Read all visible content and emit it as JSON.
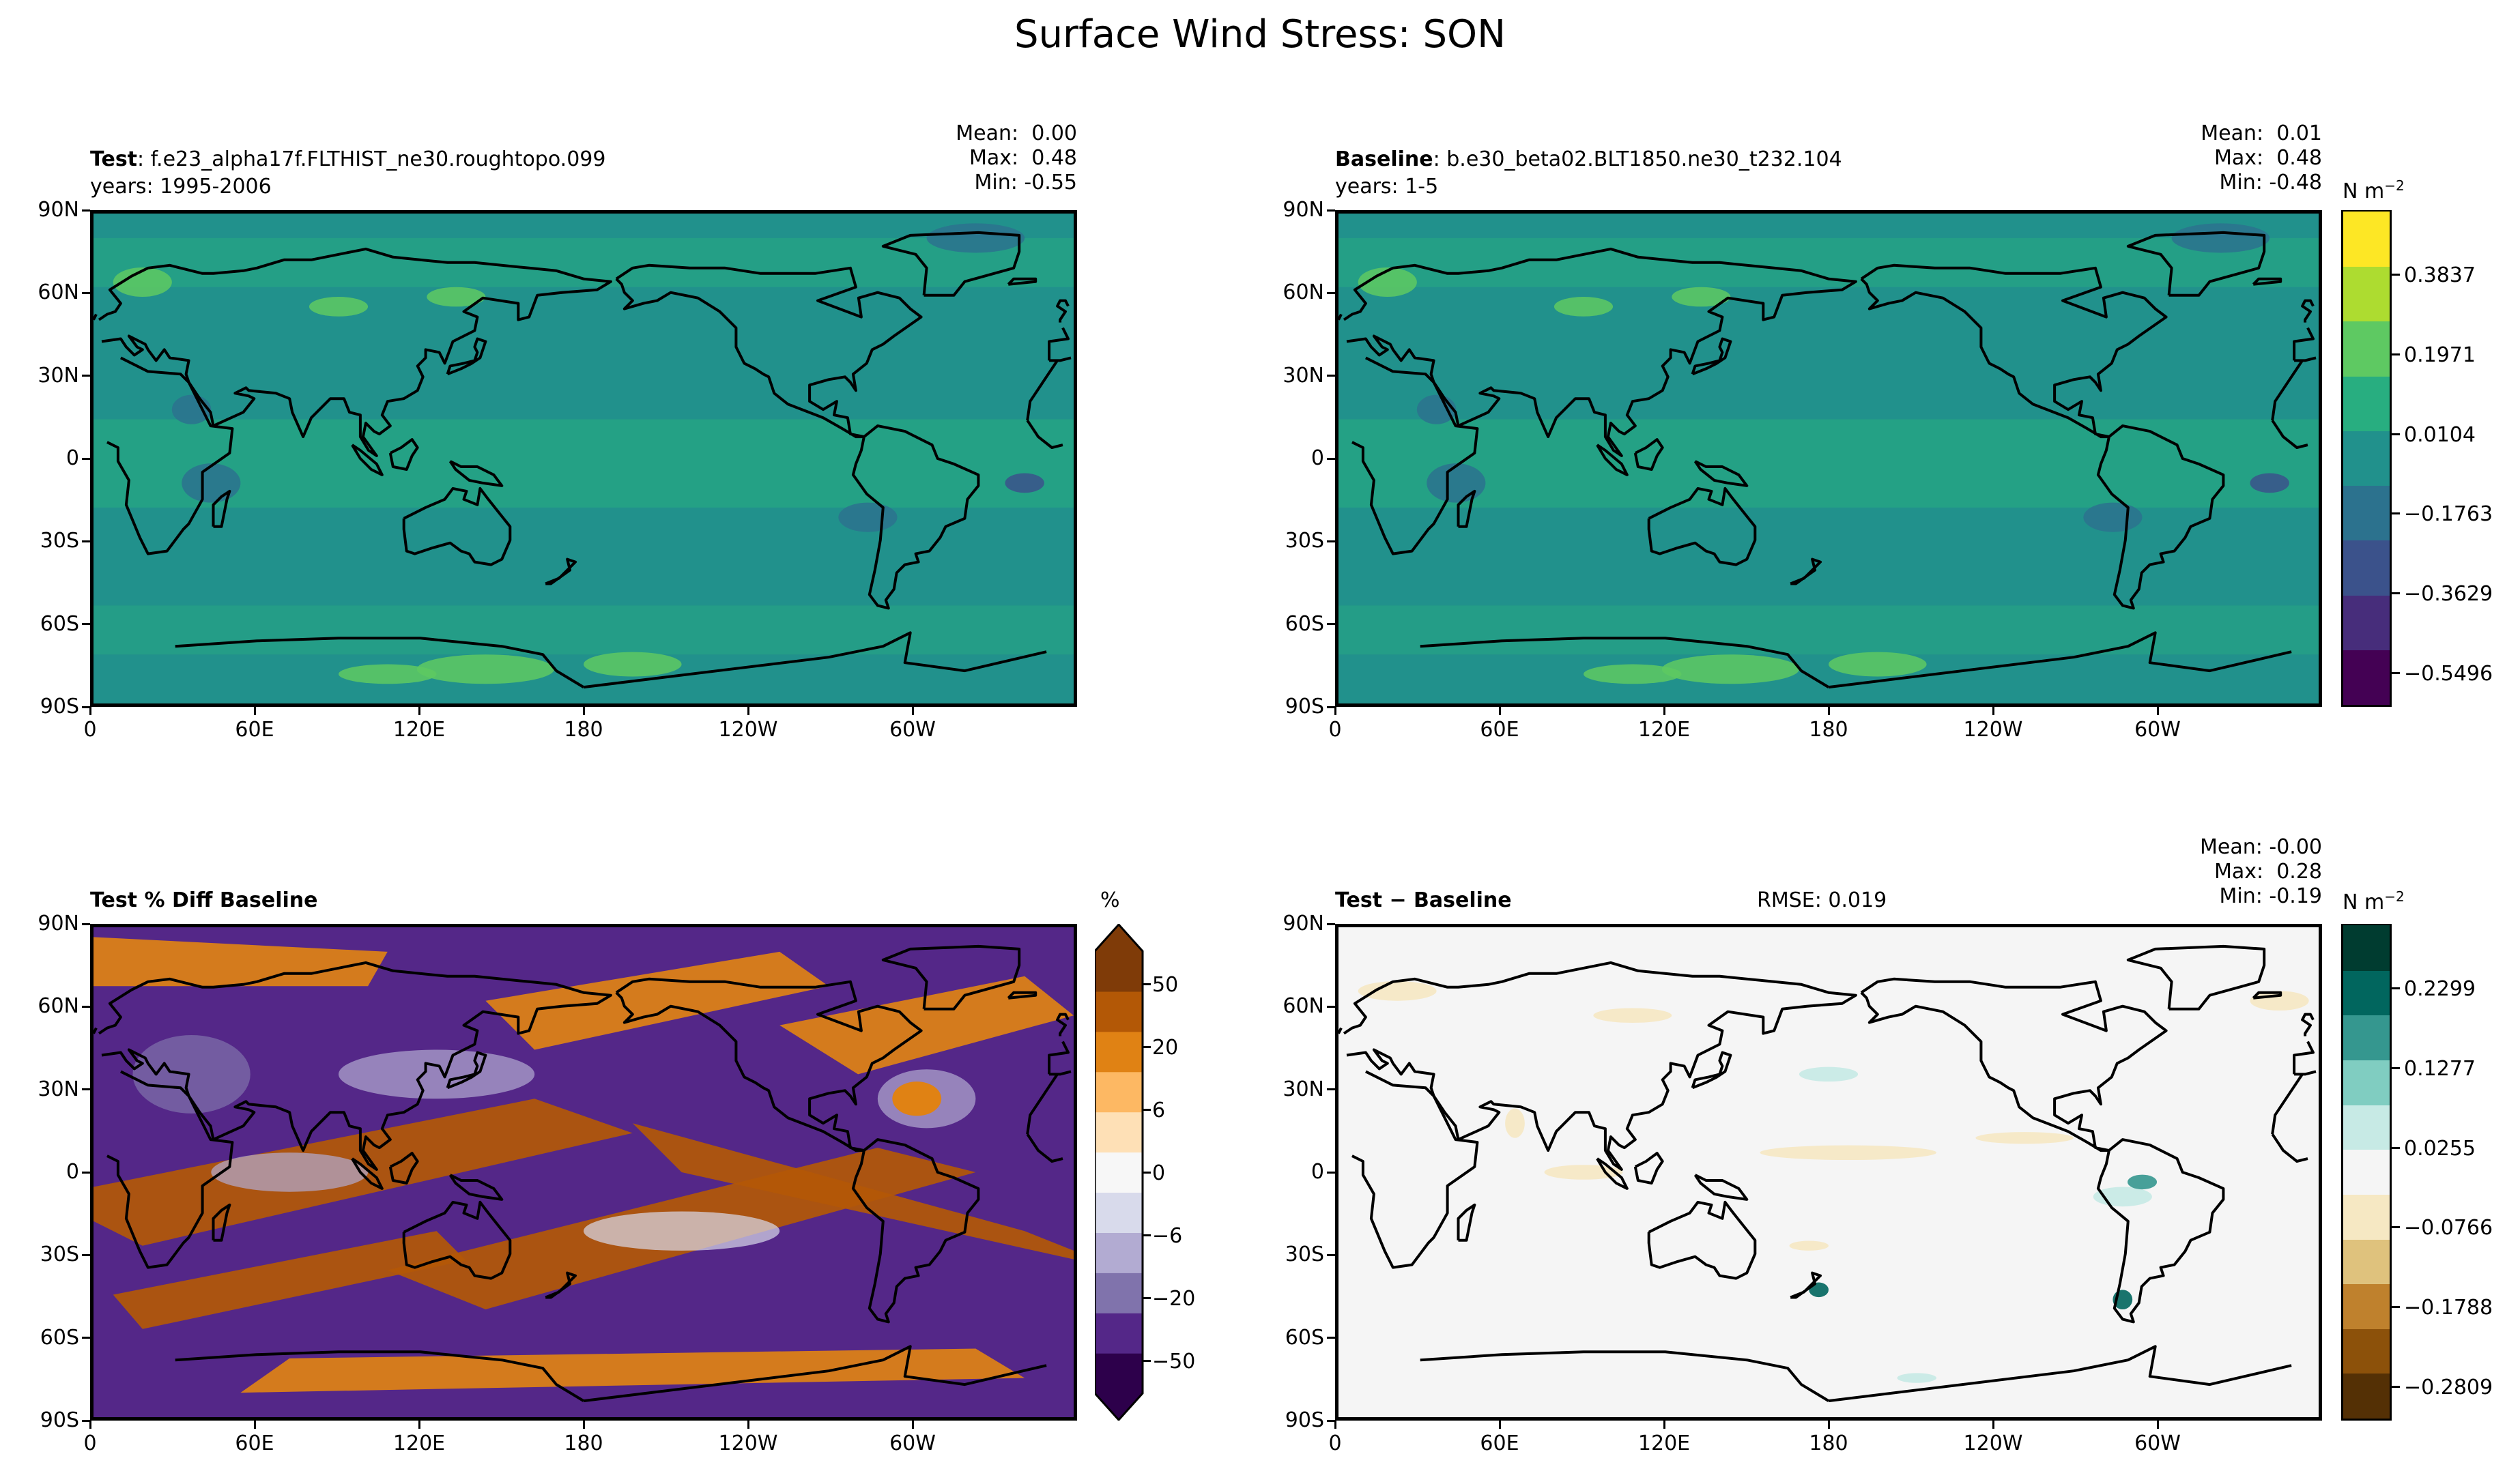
{
  "figure": {
    "suptitle": "Surface Wind Stress: SON"
  },
  "axes": {
    "lat_ticks": [
      "90N",
      "60N",
      "30N",
      "0",
      "30S",
      "60S",
      "90S"
    ],
    "lon_ticks": [
      "0",
      "60E",
      "120E",
      "180",
      "120W",
      "60W"
    ]
  },
  "panels": {
    "test": {
      "title_bold": "Test",
      "title_rest": ": f.e23_alpha17f.FLTHIST_ne30.roughtopo.099",
      "subtitle": "years: 1995-2006",
      "mean": "Mean:  0.00",
      "max": "Max:  0.48",
      "min": "Min: -0.55"
    },
    "baseline": {
      "title_bold": "Baseline",
      "title_rest": ": b.e30_beta02.BLT1850.ne30_t232.104",
      "subtitle": "years: 1-5",
      "mean": "Mean:  0.01",
      "max": "Max:  0.48",
      "min": "Min: -0.48"
    },
    "pctdiff": {
      "title_bold": "Test % Diff Baseline"
    },
    "diff": {
      "title_bold": "Test",
      "title_rest": " − Baseline",
      "rmse": "RMSE: 0.019",
      "mean": "Mean: -0.00",
      "max": "Max:  0.28",
      "min": "Min: -0.19"
    }
  },
  "colorbars": {
    "field": {
      "unit": "N m",
      "unit_exp": "−2",
      "labels": [
        "0.3837",
        "0.1971",
        "0.0104",
        "−0.1763",
        "−0.3629",
        "−0.5496"
      ],
      "colors": [
        "#440154",
        "#472d7b",
        "#3b528b",
        "#2c728e",
        "#21918c",
        "#28ae80",
        "#5ec962",
        "#addc30",
        "#fde725"
      ]
    },
    "pct": {
      "unit": "%",
      "labels": [
        "50",
        "20",
        "6",
        "0",
        "−6",
        "−20",
        "−50"
      ],
      "colors": [
        "#2d004b",
        "#542788",
        "#8073ac",
        "#b2abd2",
        "#d8daeb",
        "#f7f7f7",
        "#fee0b6",
        "#fdb863",
        "#e08214",
        "#b35806",
        "#7f3b08"
      ]
    },
    "diff": {
      "unit": "N m",
      "unit_exp": "−2",
      "labels": [
        "0.2299",
        "0.1277",
        "0.0255",
        "−0.0766",
        "−0.1788",
        "−0.2809"
      ],
      "colors": [
        "#543005",
        "#8c510a",
        "#bf812d",
        "#dfc27d",
        "#f6e8c3",
        "#f5f5f5",
        "#c7eae5",
        "#80cdc1",
        "#35978f",
        "#01665e",
        "#003c30"
      ]
    }
  },
  "chart_data": [
    {
      "type": "heatmap",
      "title": "Test : f.e23_alpha17f.FLTHIST_ne30.roughtopo.099",
      "subtitle": "years: 1995-2006",
      "variable": "Surface Wind Stress",
      "season": "SON",
      "stats": {
        "mean": 0.0,
        "max": 0.48,
        "min": -0.55
      },
      "xlim": [
        0,
        360
      ],
      "ylim": [
        -90,
        90
      ],
      "colorbar_levels": [
        -0.5496,
        -0.3629,
        -0.1763,
        0.0104,
        0.1971,
        0.3837
      ],
      "unit": "N m-2"
    },
    {
      "type": "heatmap",
      "title": "Baseline : b.e30_beta02.BLT1850.ne30_t232.104",
      "subtitle": "years: 1-5",
      "stats": {
        "mean": 0.01,
        "max": 0.48,
        "min": -0.48
      },
      "xlim": [
        0,
        360
      ],
      "ylim": [
        -90,
        90
      ],
      "colorbar_levels": [
        -0.5496,
        -0.3629,
        -0.1763,
        0.0104,
        0.1971,
        0.3837
      ],
      "unit": "N m-2"
    },
    {
      "type": "heatmap",
      "title": "Test % Diff Baseline",
      "xlim": [
        0,
        360
      ],
      "ylim": [
        -90,
        90
      ],
      "colorbar_levels": [
        -50,
        -20,
        -6,
        0,
        6,
        20,
        50
      ],
      "unit": "%"
    },
    {
      "type": "heatmap",
      "title": "Test − Baseline",
      "rmse": 0.019,
      "stats": {
        "mean": -0.0,
        "max": 0.28,
        "min": -0.19
      },
      "xlim": [
        0,
        360
      ],
      "ylim": [
        -90,
        90
      ],
      "colorbar_levels": [
        -0.2809,
        -0.1788,
        -0.0766,
        0.0255,
        0.1277,
        0.2299
      ],
      "unit": "N m-2"
    }
  ]
}
